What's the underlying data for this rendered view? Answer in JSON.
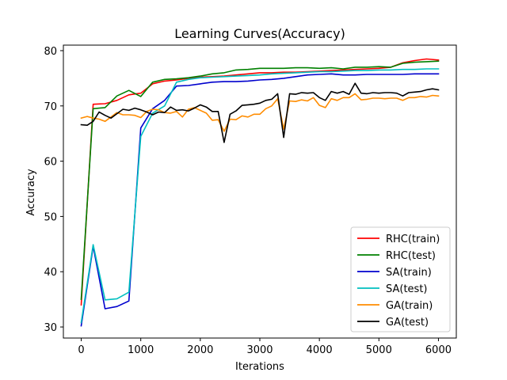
{
  "chart_data": {
    "type": "line",
    "title": "Learning Curves(Accuracy)",
    "xlabel": "Iterations",
    "ylabel": "Accuracy",
    "xlim": [
      -300,
      6300
    ],
    "ylim": [
      28,
      81
    ],
    "xticks": [
      0,
      1000,
      2000,
      3000,
      4000,
      5000,
      6000
    ],
    "yticks": [
      30,
      40,
      50,
      60,
      70,
      80
    ],
    "grid": false,
    "legend_position": "lower-right",
    "series": [
      {
        "name": "RHC(train)",
        "color": "#ff0000",
        "x": [
          0,
          200,
          400,
          600,
          800,
          1000,
          1200,
          1400,
          1600,
          1800,
          2000,
          2200,
          2400,
          2600,
          2800,
          3000,
          3200,
          3400,
          3600,
          3800,
          4000,
          4200,
          4400,
          4600,
          4800,
          5000,
          5200,
          5400,
          5600,
          5800,
          6000
        ],
        "y": [
          34.0,
          70.3,
          70.4,
          71.0,
          72.0,
          72.3,
          74.0,
          74.5,
          74.7,
          75.0,
          75.2,
          75.3,
          75.4,
          75.6,
          75.8,
          76.0,
          76.0,
          76.1,
          76.1,
          76.2,
          76.3,
          76.4,
          76.5,
          76.6,
          76.7,
          76.8,
          77.0,
          77.8,
          78.2,
          78.5,
          78.3
        ]
      },
      {
        "name": "RHC(test)",
        "color": "#008000",
        "x": [
          0,
          200,
          400,
          600,
          800,
          1000,
          1200,
          1400,
          1600,
          1800,
          2000,
          2200,
          2400,
          2600,
          2800,
          3000,
          3200,
          3400,
          3600,
          3800,
          4000,
          4200,
          4400,
          4600,
          4800,
          5000,
          5200,
          5400,
          5600,
          5800,
          6000
        ],
        "y": [
          35.0,
          69.5,
          69.7,
          71.8,
          72.8,
          71.7,
          74.3,
          74.8,
          74.9,
          75.1,
          75.4,
          75.8,
          76.0,
          76.5,
          76.6,
          76.8,
          76.8,
          76.8,
          76.9,
          76.9,
          76.8,
          76.9,
          76.7,
          77.0,
          77.0,
          77.1,
          77.0,
          77.7,
          77.9,
          78.0,
          78.1
        ]
      },
      {
        "name": "SA(train)",
        "color": "#0000cd",
        "x": [
          0,
          200,
          400,
          600,
          800,
          1000,
          1200,
          1400,
          1600,
          1800,
          2000,
          2200,
          2400,
          2600,
          2800,
          3000,
          3200,
          3400,
          3600,
          3800,
          4000,
          4200,
          4400,
          4600,
          4800,
          5000,
          5200,
          5400,
          5600,
          5800,
          6000
        ],
        "y": [
          30.2,
          44.6,
          33.3,
          33.7,
          34.7,
          66.0,
          69.5,
          71.0,
          73.6,
          73.7,
          74.0,
          74.3,
          74.4,
          74.4,
          74.5,
          74.7,
          74.8,
          75.0,
          75.3,
          75.6,
          75.7,
          75.8,
          75.6,
          75.6,
          75.7,
          75.7,
          75.7,
          75.7,
          75.8,
          75.8,
          75.8
        ]
      },
      {
        "name": "SA(test)",
        "color": "#00bfbf",
        "x": [
          0,
          200,
          400,
          600,
          800,
          1000,
          1200,
          1400,
          1600,
          1800,
          2000,
          2200,
          2400,
          2600,
          2800,
          3000,
          3200,
          3400,
          3600,
          3800,
          4000,
          4200,
          4400,
          4600,
          4800,
          5000,
          5200,
          5400,
          5600,
          5800,
          6000
        ],
        "y": [
          30.8,
          44.9,
          34.9,
          35.1,
          36.3,
          64.5,
          68.7,
          70.0,
          74.3,
          74.8,
          75.1,
          75.2,
          75.3,
          75.4,
          75.5,
          75.6,
          75.8,
          75.9,
          76.0,
          76.1,
          76.2,
          76.2,
          76.3,
          76.4,
          76.4,
          76.5,
          76.5,
          76.6,
          76.6,
          76.7,
          76.7
        ]
      },
      {
        "name": "GA(train)",
        "color": "#ff8c00",
        "x": [
          0,
          100,
          200,
          300,
          400,
          500,
          600,
          700,
          800,
          900,
          1000,
          1100,
          1200,
          1300,
          1400,
          1500,
          1600,
          1700,
          1800,
          1900,
          2000,
          2100,
          2200,
          2300,
          2400,
          2500,
          2600,
          2700,
          2800,
          2900,
          3000,
          3100,
          3200,
          3300,
          3400,
          3500,
          3600,
          3700,
          3800,
          3900,
          4000,
          4100,
          4200,
          4300,
          4400,
          4500,
          4600,
          4700,
          4800,
          4900,
          5000,
          5100,
          5200,
          5300,
          5400,
          5500,
          5600,
          5700,
          5800,
          5900,
          6000
        ],
        "y": [
          67.8,
          68.1,
          67.8,
          67.6,
          67.2,
          68.0,
          68.8,
          68.4,
          68.4,
          68.3,
          67.9,
          69.0,
          69.4,
          69.3,
          68.8,
          68.7,
          69.0,
          68.0,
          69.4,
          69.7,
          69.2,
          68.7,
          67.4,
          67.5,
          65.4,
          67.6,
          67.5,
          68.2,
          68.0,
          68.5,
          68.5,
          69.5,
          70.0,
          71.3,
          65.8,
          70.9,
          70.8,
          71.1,
          70.9,
          71.5,
          70.1,
          69.7,
          71.3,
          71.0,
          71.5,
          71.5,
          72.2,
          71.1,
          71.2,
          71.4,
          71.4,
          71.3,
          71.4,
          71.4,
          71.0,
          71.5,
          71.5,
          71.7,
          71.6,
          71.9,
          71.8
        ]
      },
      {
        "name": "GA(test)",
        "color": "#000000",
        "x": [
          0,
          100,
          200,
          300,
          400,
          500,
          600,
          700,
          800,
          900,
          1000,
          1100,
          1200,
          1300,
          1400,
          1500,
          1600,
          1700,
          1800,
          1900,
          2000,
          2100,
          2200,
          2300,
          2400,
          2500,
          2600,
          2700,
          2800,
          2900,
          3000,
          3100,
          3200,
          3300,
          3400,
          3500,
          3600,
          3700,
          3800,
          3900,
          4000,
          4100,
          4200,
          4300,
          4400,
          4500,
          4600,
          4700,
          4800,
          4900,
          5000,
          5100,
          5200,
          5300,
          5400,
          5500,
          5600,
          5700,
          5800,
          5900,
          6000
        ],
        "y": [
          66.6,
          66.5,
          67.2,
          68.9,
          68.3,
          67.8,
          68.6,
          69.4,
          69.2,
          69.6,
          69.3,
          68.9,
          68.4,
          68.9,
          68.8,
          69.8,
          69.2,
          69.3,
          69.1,
          69.6,
          70.2,
          69.8,
          69.0,
          69.0,
          63.4,
          68.5,
          69.1,
          70.1,
          70.2,
          70.3,
          70.5,
          71.0,
          71.2,
          72.2,
          64.3,
          72.2,
          72.1,
          72.4,
          72.3,
          72.4,
          71.5,
          71.0,
          72.6,
          72.3,
          72.6,
          72.1,
          74.1,
          72.3,
          72.2,
          72.4,
          72.3,
          72.4,
          72.4,
          72.3,
          71.8,
          72.4,
          72.5,
          72.6,
          72.9,
          73.1,
          72.9
        ]
      }
    ]
  }
}
